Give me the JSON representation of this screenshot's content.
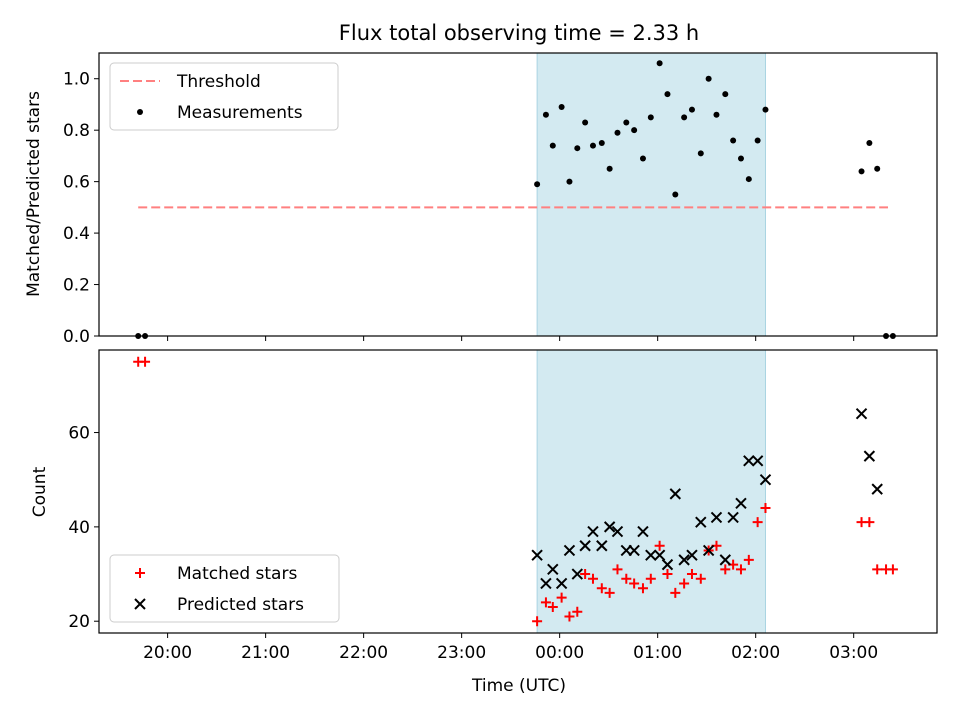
{
  "figure": {
    "title": "Flux total observing time = 2.33 h",
    "xlabel": "Time (UTC)",
    "xticks": [
      "20:00",
      "21:00",
      "22:00",
      "23:00",
      "00:00",
      "01:00",
      "02:00",
      "03:00"
    ]
  },
  "colors": {
    "threshold": "#ff8080",
    "measurement": "#000000",
    "matched": "#ff0000",
    "predicted": "#000000",
    "band": "#d3eaf1",
    "band_edge": "#a9d4e2"
  },
  "chart_data": [
    {
      "type": "scatter",
      "ylabel": "Matched/Predicted stars",
      "ylim": [
        0,
        1.1
      ],
      "xlim_hours": [
        19.3,
        27.85
      ],
      "yticks": [
        "0.0",
        "0.2",
        "0.4",
        "0.6",
        "0.8",
        "1.0"
      ],
      "shaded_span_hours": [
        23.77,
        26.1
      ],
      "threshold": {
        "name": "Threshold",
        "y": 0.5,
        "x_from_hours": 19.7,
        "x_to_hours": 27.35
      },
      "legend": {
        "placement": "upper-left",
        "entries": [
          "Threshold",
          "Measurements"
        ]
      },
      "series": [
        {
          "name": "Measurements",
          "x_hours": [
            19.7,
            19.77,
            23.77,
            23.86,
            23.93,
            24.02,
            24.1,
            24.18,
            24.26,
            24.34,
            24.43,
            24.51,
            24.59,
            24.68,
            24.76,
            24.85,
            24.93,
            25.02,
            25.1,
            25.18,
            25.27,
            25.35,
            25.44,
            25.52,
            25.6,
            25.69,
            25.77,
            25.85,
            25.93,
            26.02,
            26.1,
            27.08,
            27.16,
            27.24,
            27.33,
            27.4
          ],
          "y": [
            0.0,
            0.0,
            0.59,
            0.86,
            0.74,
            0.89,
            0.6,
            0.73,
            0.83,
            0.74,
            0.75,
            0.65,
            0.79,
            0.83,
            0.8,
            0.69,
            0.85,
            1.06,
            0.94,
            0.55,
            0.85,
            0.88,
            0.71,
            1.0,
            0.86,
            0.94,
            0.76,
            0.69,
            0.61,
            0.76,
            0.88,
            0.64,
            0.75,
            0.65,
            0.0,
            0.0
          ]
        }
      ]
    },
    {
      "type": "scatter",
      "ylabel": "Count",
      "ylim": [
        17.5,
        77.5
      ],
      "xlim_hours": [
        19.3,
        27.85
      ],
      "yticks": [
        "20",
        "40",
        "60"
      ],
      "shaded_span_hours": [
        23.77,
        26.1
      ],
      "legend": {
        "placement": "lower-left",
        "entries": [
          "Matched stars",
          "Predicted stars"
        ]
      },
      "series": [
        {
          "name": "Matched stars",
          "x_hours": [
            19.7,
            19.77,
            23.77,
            23.86,
            23.93,
            24.02,
            24.1,
            24.18,
            24.26,
            24.34,
            24.43,
            24.51,
            24.59,
            24.68,
            24.76,
            24.85,
            24.93,
            25.02,
            25.1,
            25.18,
            25.27,
            25.35,
            25.44,
            25.52,
            25.6,
            25.69,
            25.77,
            25.85,
            25.93,
            26.02,
            26.1,
            27.08,
            27.16,
            27.24,
            27.33,
            27.4
          ],
          "y": [
            75,
            75,
            20,
            24,
            23,
            25,
            21,
            22,
            30,
            29,
            27,
            26,
            31,
            29,
            28,
            27,
            29,
            36,
            30,
            26,
            28,
            30,
            29,
            35,
            36,
            31,
            32,
            31,
            33,
            41,
            44,
            41,
            41,
            31,
            31,
            31
          ]
        },
        {
          "name": "Predicted stars",
          "x_hours": [
            23.77,
            23.86,
            23.93,
            24.02,
            24.1,
            24.18,
            24.26,
            24.34,
            24.43,
            24.51,
            24.59,
            24.68,
            24.76,
            24.85,
            24.93,
            25.02,
            25.1,
            25.18,
            25.27,
            25.35,
            25.44,
            25.52,
            25.6,
            25.69,
            25.77,
            25.85,
            25.93,
            26.02,
            26.1,
            27.08,
            27.16,
            27.24
          ],
          "y": [
            34,
            28,
            31,
            28,
            35,
            30,
            36,
            39,
            36,
            40,
            39,
            35,
            35,
            39,
            34,
            34,
            32,
            47,
            33,
            34,
            41,
            35,
            42,
            33,
            42,
            45,
            54,
            54,
            50,
            64,
            55,
            48
          ]
        }
      ]
    }
  ]
}
